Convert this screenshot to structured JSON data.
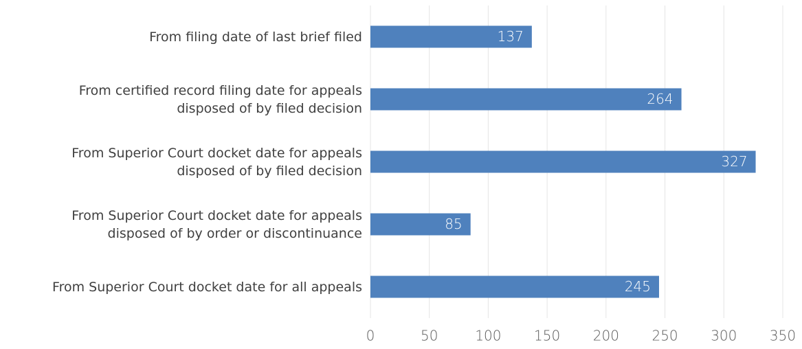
{
  "chart_data": {
    "type": "bar",
    "orientation": "horizontal",
    "categories": [
      "From filing date of last brief filed",
      "From certified record filing date for appeals\ndisposed of by filed decision",
      "From Superior Court docket date for appeals\ndisposed of by filed decision",
      "From Superior Court docket date for appeals\ndisposed of by order or discontinuance",
      "From Superior Court docket date for all appeals"
    ],
    "values": [
      137,
      264,
      327,
      85,
      245
    ],
    "color": "#4f81bd",
    "xlim": [
      0,
      350
    ],
    "xticks": [
      0,
      50,
      100,
      150,
      200,
      250,
      300,
      350
    ],
    "grid": true
  }
}
